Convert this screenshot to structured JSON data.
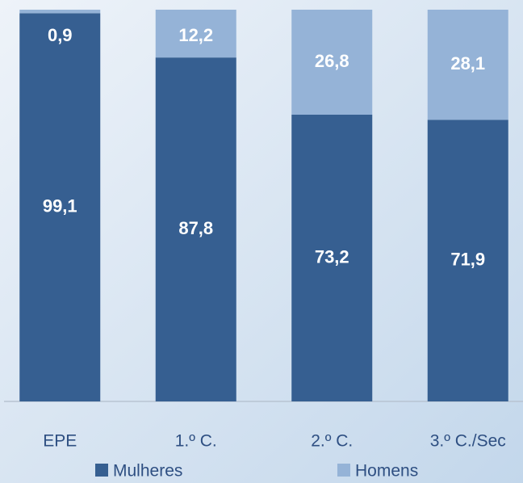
{
  "chart_data": {
    "type": "stacked_bar",
    "categories": [
      "EPE",
      "1.º C.",
      "2.º C.",
      "3.º C./Sec"
    ],
    "series": [
      {
        "name": "Mulheres",
        "color": "#365f91",
        "values": [
          99.1,
          87.8,
          73.2,
          71.9
        ],
        "value_labels": [
          "99,1",
          "87,8",
          "73,2",
          "71,9"
        ]
      },
      {
        "name": "Homens",
        "color": "#95b3d7",
        "values": [
          0.9,
          12.2,
          26.8,
          28.1
        ],
        "value_labels": [
          "0,9",
          "12,2",
          "26,8",
          "28,1"
        ]
      }
    ],
    "ylim": [
      0,
      100
    ],
    "legend": "bottom"
  }
}
